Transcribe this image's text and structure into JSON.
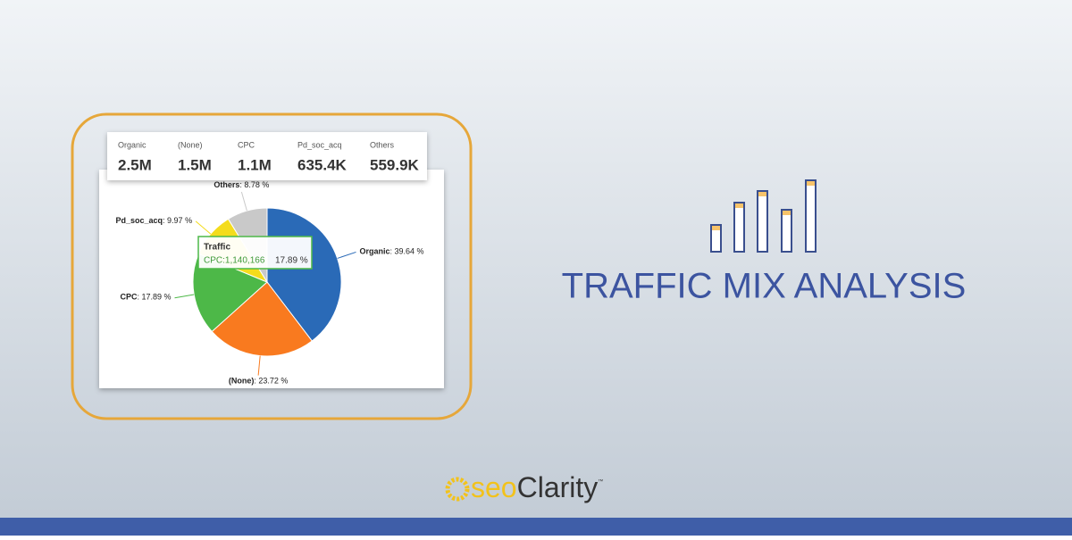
{
  "summary": [
    {
      "label": "Organic",
      "value": "2.5M"
    },
    {
      "label": "(None)",
      "value": "1.5M"
    },
    {
      "label": "CPC",
      "value": "1.1M"
    },
    {
      "label": "Pd_soc_acq",
      "value": "635.4K"
    },
    {
      "label": "Others",
      "value": "559.9K"
    }
  ],
  "chart_data": {
    "type": "pie",
    "categories": [
      "Organic",
      "(None)",
      "CPC",
      "Pd_soc_acq",
      "Others"
    ],
    "values": [
      39.64,
      23.72,
      17.89,
      9.97,
      8.78
    ],
    "value_labels": [
      ": 39.64 %",
      ": 23.72 %",
      ": 17.89 %",
      ": 9.97 %",
      ": 8.78 %"
    ],
    "colors": [
      "#2a6ab7",
      "#f97a1f",
      "#4db848",
      "#f4dc1c",
      "#c9c9c9"
    ]
  },
  "tooltip": {
    "title": "Traffic",
    "line": "CPC:1,140,166",
    "percent": "17.89 %"
  },
  "heading": "TRAFFIC MIX ANALYSIS",
  "logo": {
    "seo": "seo",
    "brand": "Clarity",
    "mark": "™"
  }
}
